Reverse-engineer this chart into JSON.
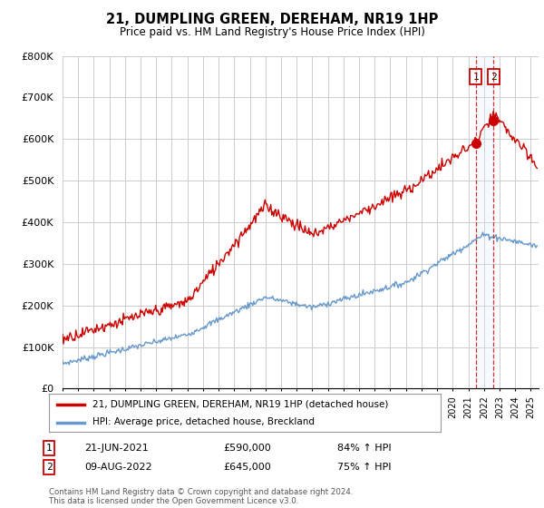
{
  "title": "21, DUMPLING GREEN, DEREHAM, NR19 1HP",
  "subtitle": "Price paid vs. HM Land Registry's House Price Index (HPI)",
  "ylabel_ticks": [
    "£0",
    "£100K",
    "£200K",
    "£300K",
    "£400K",
    "£500K",
    "£600K",
    "£700K",
    "£800K"
  ],
  "ylim": [
    0,
    800000
  ],
  "xlim_start": 1995,
  "xlim_end": 2025.5,
  "line1_color": "#cc0000",
  "line2_color": "#6699cc",
  "line2_shade_color": "#ddeeff",
  "vline1_x": 2021.47,
  "vline2_x": 2022.61,
  "marker1_x": 2021.47,
  "marker1_y": 590000,
  "marker2_x": 2022.61,
  "marker2_y": 645000,
  "legend_label1": "21, DUMPLING GREEN, DEREHAM, NR19 1HP (detached house)",
  "legend_label2": "HPI: Average price, detached house, Breckland",
  "annotation1_num": "1",
  "annotation1_date": "21-JUN-2021",
  "annotation1_price": "£590,000",
  "annotation1_hpi": "84% ↑ HPI",
  "annotation2_num": "2",
  "annotation2_date": "09-AUG-2022",
  "annotation2_price": "£645,000",
  "annotation2_hpi": "75% ↑ HPI",
  "footer": "Contains HM Land Registry data © Crown copyright and database right 2024.\nThis data is licensed under the Open Government Licence v3.0.",
  "background_color": "#ffffff",
  "grid_color": "#cccccc"
}
